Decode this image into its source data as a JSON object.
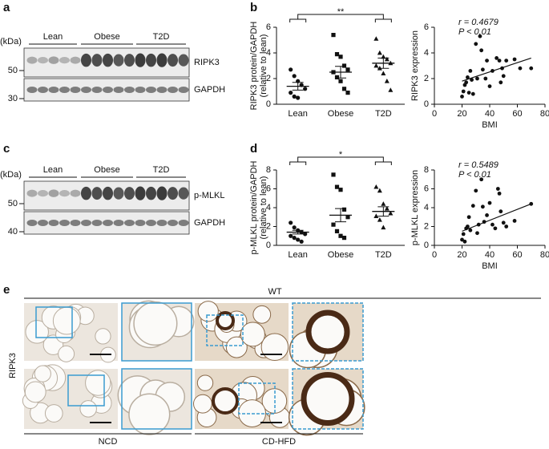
{
  "blots": [
    {
      "panel_label": "a",
      "unit": "(kDa)",
      "groups": [
        "Lean",
        "Obese",
        "T2D"
      ],
      "bands": [
        "RIPK3",
        "GAPDH"
      ],
      "markers": [
        50,
        30
      ]
    },
    {
      "panel_label": "c",
      "unit": "(kDa)",
      "groups": [
        "Lean",
        "Obese",
        "T2D"
      ],
      "bands": [
        "p-MLKL",
        "GAPDH"
      ],
      "markers": [
        50,
        40
      ]
    }
  ],
  "chart_data": [
    {
      "type": "dotplot",
      "panel_label": "b",
      "ylabel": [
        "RIPK3 protein/GAPDH",
        "(relative to lean)"
      ],
      "categories": [
        "Lean",
        "Obese",
        "T2D"
      ],
      "significance": "**",
      "groups": [
        {
          "marker": "circle",
          "values": [
            2.7,
            2.2,
            1.8,
            1.5,
            1.2,
            0.9,
            0.6,
            0.5
          ],
          "mean": 1.4,
          "sem": 0.3
        },
        {
          "marker": "square",
          "values": [
            5.4,
            3.9,
            3.7,
            3.0,
            2.7,
            2.5,
            2.1,
            1.8,
            1.2,
            0.9
          ],
          "mean": 2.5,
          "sem": 0.45
        },
        {
          "marker": "triangle",
          "values": [
            5.1,
            4.0,
            3.7,
            3.5,
            3.2,
            3.0,
            2.8,
            2.4,
            1.8,
            1.1
          ],
          "mean": 3.2,
          "sem": 0.4
        }
      ],
      "ylim": [
        0,
        6
      ],
      "yticks": [
        0,
        2,
        4,
        6
      ]
    },
    {
      "type": "scatter",
      "ylabel": "RIPK3 expression",
      "xlabel": "BMI",
      "r_label": "r = 0.4679",
      "p_label": "P < 0.01",
      "x": [
        20,
        21,
        22,
        23,
        24,
        25,
        26,
        27,
        28,
        30,
        31,
        33,
        34,
        35,
        37,
        38,
        40,
        42,
        45,
        47,
        48,
        49,
        50,
        52,
        58,
        62,
        70
      ],
      "values": [
        0.6,
        1.0,
        1.5,
        1.7,
        2.1,
        0.9,
        2.6,
        1.9,
        0.8,
        4.7,
        2.0,
        5.3,
        4.2,
        2.7,
        2.0,
        3.4,
        1.4,
        2.6,
        3.6,
        3.4,
        1.7,
        2.8,
        2.2,
        3.4,
        3.5,
        2.8,
        2.8
      ],
      "fit_line": {
        "x": [
          20,
          70
        ],
        "values": [
          1.8,
          3.6
        ]
      },
      "xlim": [
        0,
        80
      ],
      "xticks": [
        0,
        20,
        40,
        60,
        80
      ],
      "ylim": [
        0,
        6
      ],
      "yticks": [
        0,
        2,
        4,
        6
      ]
    },
    {
      "type": "dotplot",
      "panel_label": "d",
      "ylabel": [
        "p-MLKL protein/GAPDH",
        "(relative to lean)"
      ],
      "categories": [
        "Lean",
        "Obese",
        "T2D"
      ],
      "significance": "*",
      "groups": [
        {
          "marker": "circle",
          "values": [
            2.4,
            1.9,
            1.6,
            1.4,
            1.2,
            1.0,
            0.8,
            0.6,
            0.4
          ],
          "mean": 1.4,
          "sem": 0.2
        },
        {
          "marker": "square",
          "values": [
            7.5,
            6.2,
            5.9,
            3.8,
            3.0,
            2.2,
            1.5,
            1.0,
            0.8
          ],
          "mean": 3.2,
          "sem": 0.7
        },
        {
          "marker": "triangle",
          "values": [
            6.2,
            5.8,
            4.4,
            3.9,
            3.4,
            3.1,
            2.7,
            1.9
          ],
          "mean": 3.6,
          "sem": 0.5
        }
      ],
      "ylim": [
        0,
        8
      ],
      "yticks": [
        0,
        2,
        4,
        6,
        8
      ]
    },
    {
      "type": "scatter",
      "ylabel": "p-MLKL expression",
      "xlabel": "BMI",
      "r_label": "r = 0.5489",
      "p_label": "P < 0.01",
      "x": [
        20,
        21,
        22,
        23,
        24,
        25,
        26,
        28,
        30,
        31,
        32,
        34,
        35,
        36,
        38,
        40,
        42,
        44,
        46,
        47,
        48,
        50,
        52,
        58,
        70
      ],
      "values": [
        0.6,
        1.2,
        0.4,
        1.8,
        2.0,
        3.0,
        1.6,
        4.2,
        5.8,
        1.3,
        2.2,
        7.0,
        4.1,
        2.5,
        3.2,
        4.5,
        2.2,
        1.8,
        6.0,
        5.5,
        3.6,
        2.4,
        2.0,
        2.6,
        4.4
      ],
      "fit_line": {
        "x": [
          20,
          70
        ],
        "values": [
          1.5,
          4.4
        ]
      },
      "xlim": [
        0,
        80
      ],
      "xticks": [
        0,
        20,
        40,
        60,
        80
      ],
      "ylim": [
        0,
        8
      ],
      "yticks": [
        0,
        2,
        4,
        6,
        8
      ]
    }
  ],
  "histology": {
    "panel_label": "e",
    "genotype": "WT",
    "stain": "RIPK3",
    "diets": [
      "NCD",
      "CD-HFD"
    ]
  }
}
